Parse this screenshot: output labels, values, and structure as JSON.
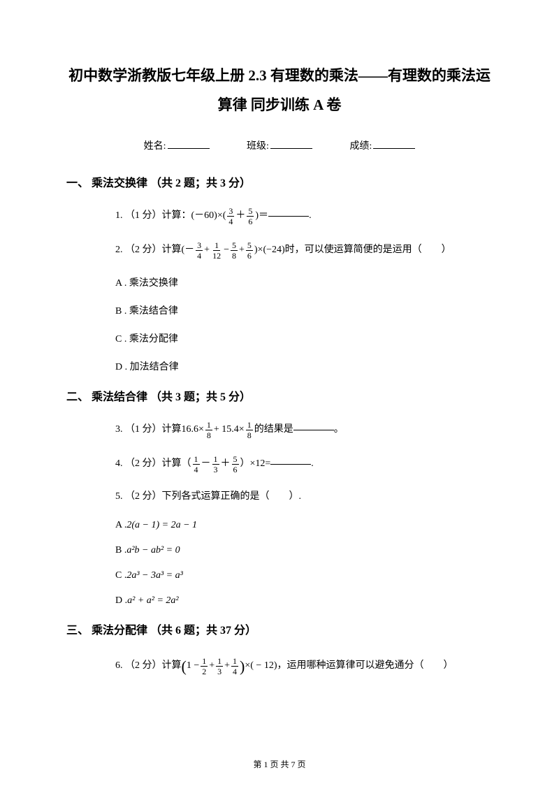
{
  "title_line1": "初中数学浙教版七年级上册 2.3 有理数的乘法——有理数的乘法运",
  "title_line2": "算律 同步训练 A 卷",
  "info": {
    "name_label": "姓名:",
    "class_label": "班级:",
    "score_label": "成绩:"
  },
  "section1": {
    "header": "一、 乘法交换律 （共 2 题；共 3 分）",
    "q1": {
      "prefix": "1. （1 分）计算：(－60)×( ",
      "f1_num": "3",
      "f1_den": "4",
      "plus": " ＋ ",
      "f2_num": "5",
      "f2_den": "6",
      "suffix": " )＝",
      "period": "."
    },
    "q2": {
      "prefix": "2. （2 分）计算(－ ",
      "f1_num": "3",
      "f1_den": "4",
      "p1": "+ ",
      "f2_num": "1",
      "f2_den": "12",
      "p2": " − ",
      "f3_num": "5",
      "f3_den": "8",
      "p3": "+ ",
      "f4_num": "5",
      "f4_den": "6",
      "suffix": " )×(−24)时，可以使运算简便的是运用（　　）",
      "optA": "A . 乘法交换律",
      "optB": "B . 乘法结合律",
      "optC": "C . 乘法分配律",
      "optD": "D . 加法结合律"
    }
  },
  "section2": {
    "header": "二、 乘法结合律 （共 3 题；共 5 分）",
    "q3": {
      "prefix": "3. （1 分）计算 ",
      "expr_a": "16.6×",
      "f1_num": "1",
      "f1_den": "8",
      "expr_b": "+ 15.4×",
      "f2_num": "1",
      "f2_den": "8",
      "suffix1": " 的结果是 ",
      "suffix2": " 。"
    },
    "q4": {
      "prefix": "4. （2 分）计算（ ",
      "f1_num": "1",
      "f1_den": "4",
      "m1": " － ",
      "f2_num": "1",
      "f2_den": "3",
      "m2": " ＋ ",
      "f3_num": "5",
      "f3_den": "6",
      "suffix1": " ）×12=",
      "suffix2": "."
    },
    "q5": {
      "text": "5. （2 分）下列各式运算正确的是（　　）.",
      "optA_prefix": "A . ",
      "optA_expr": "2(a − 1) = 2a − 1",
      "optB_prefix": "B .  ",
      "optB_expr": "a²b − ab² = 0",
      "optC_prefix": "C .  ",
      "optC_expr": "2a³ − 3a³ = a³",
      "optD_prefix": "D .  ",
      "optD_expr": "a² + a² = 2a²"
    }
  },
  "section3": {
    "header": "三、 乘法分配律 （共 6 题；共 37 分）",
    "q6": {
      "prefix": "6. （2 分）计算 ",
      "expr_a": "1 − ",
      "f1_num": "1",
      "f1_den": "2",
      "expr_b": " + ",
      "f2_num": "1",
      "f2_den": "3",
      "expr_c": " + ",
      "f3_num": "1",
      "f3_den": "4",
      "expr_d": "×( − 12)",
      "suffix": " ，运用哪种运算律可以避免通分（　　）"
    }
  },
  "footer": {
    "text": "第 1 页 共 7 页"
  },
  "colors": {
    "text": "#000000",
    "background": "#ffffff"
  }
}
